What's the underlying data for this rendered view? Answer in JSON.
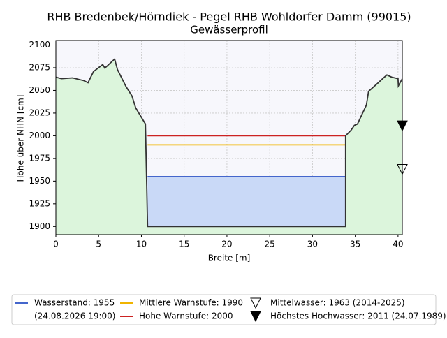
{
  "chart_data": {
    "type": "profile",
    "title": "RHB Bredenbek/Hörndiek - Pegel RHB Wohldorfer Damm (99015)",
    "subtitle": "Gewässerprofil",
    "xlabel": "Breite [m]",
    "ylabel": "Höhe über NHN [cm]",
    "xlim": [
      0,
      40.5
    ],
    "xticks": [
      0,
      5,
      10,
      15,
      20,
      25,
      30,
      35,
      40
    ],
    "ylim": [
      1891,
      2105
    ],
    "yticks": [
      1900,
      1925,
      1950,
      1975,
      2000,
      2025,
      2050,
      2075,
      2100
    ],
    "grid": true,
    "terrain": {
      "color": "#333333",
      "fill": "#dcf5dc",
      "x": [
        0,
        0.65,
        1.96,
        3.27,
        3.76,
        4.4,
        5.48,
        5.73,
        6.87,
        7.2,
        8.18,
        8.9,
        9.33,
        10.47,
        10.72,
        33.87,
        33.87,
        34.5,
        34.9,
        35.26,
        36.3,
        36.56,
        37.6,
        38.3,
        38.7,
        39.26,
        40,
        40.04,
        40.5
      ],
      "y": [
        2064.6,
        2063,
        2063.8,
        2060.8,
        2058.5,
        2070.8,
        2078.5,
        2074.6,
        2084.6,
        2073,
        2054.6,
        2043.8,
        2030.8,
        2013,
        1900,
        1900,
        2000,
        2006,
        2011.5,
        2013,
        2033.8,
        2049,
        2057.7,
        2063.8,
        2067,
        2064.6,
        2063,
        2055,
        2063
      ]
    },
    "levels": [
      {
        "kind": "water",
        "name": "Wasserstand: 1955",
        "note": "(24.08.2026 19:00)",
        "value": 1955,
        "color": "#4466cc",
        "fill": "#c9d9f7"
      },
      {
        "kind": "line",
        "name": "Mittlere Warnstufe: 1990",
        "value": 1990,
        "color": "#f0b400"
      },
      {
        "kind": "line",
        "name": "Hohe Warnstufe: 2000",
        "value": 2000,
        "color": "#cc2222"
      }
    ],
    "markers": [
      {
        "name": "Mittelwasser: 1963 (2014-2025)",
        "value": 1963,
        "filled": false
      },
      {
        "name": "Höchstes Hochwasser: 2011 (24.07.1989)",
        "value": 2011,
        "filled": true
      }
    ]
  }
}
